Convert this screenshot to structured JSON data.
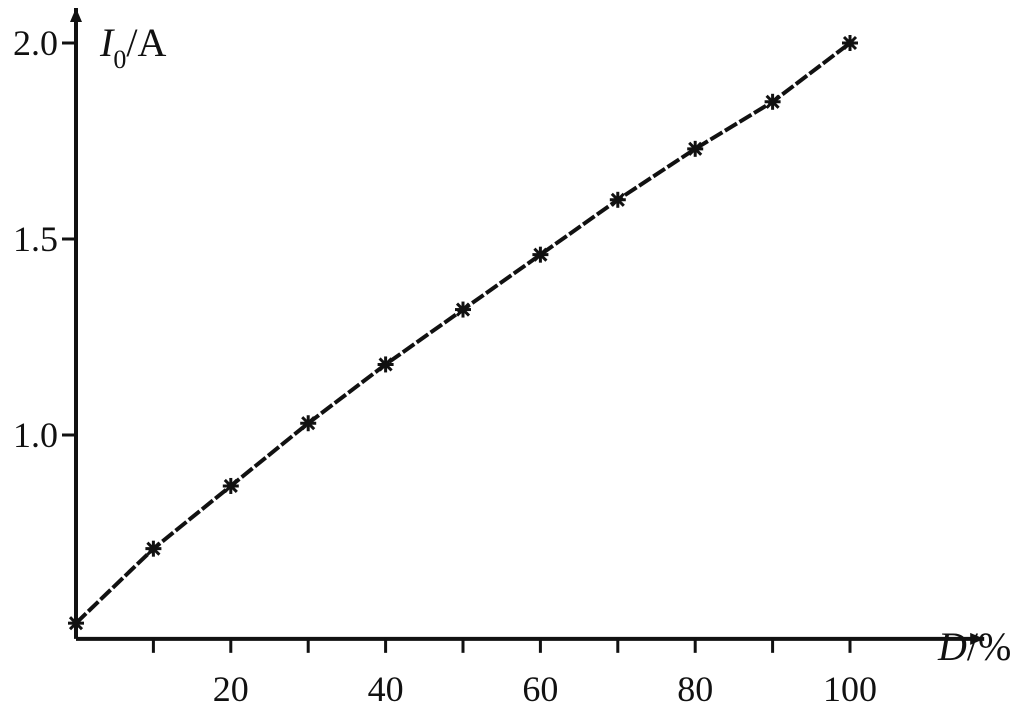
{
  "chart_data": {
    "type": "line",
    "xlabel": {
      "var": "D",
      "unit": "/%"
    },
    "ylabel": {
      "var": "I",
      "sub": "0",
      "unit": "/A"
    },
    "xlim": [
      0,
      107
    ],
    "ylim": [
      0.48,
      2.02
    ],
    "x_ticks": [
      10,
      20,
      30,
      40,
      50,
      60,
      70,
      80,
      90,
      100
    ],
    "x_tick_labels": [
      "20",
      "40",
      "60",
      "80",
      "100"
    ],
    "x_tick_label_values": [
      20,
      40,
      60,
      80,
      100
    ],
    "y_ticks": [
      1.0,
      1.5,
      2.0
    ],
    "y_tick_labels": [
      "1.0",
      "1.5",
      "2.0"
    ],
    "grid": false,
    "series": [
      {
        "marker": "star",
        "color": "#111111",
        "x": [
          0,
          10,
          20,
          30,
          40,
          50,
          60,
          70,
          80,
          90,
          100
        ],
        "y": [
          0.52,
          0.71,
          0.87,
          1.03,
          1.18,
          1.32,
          1.46,
          1.6,
          1.73,
          1.85,
          2.0
        ]
      }
    ]
  }
}
